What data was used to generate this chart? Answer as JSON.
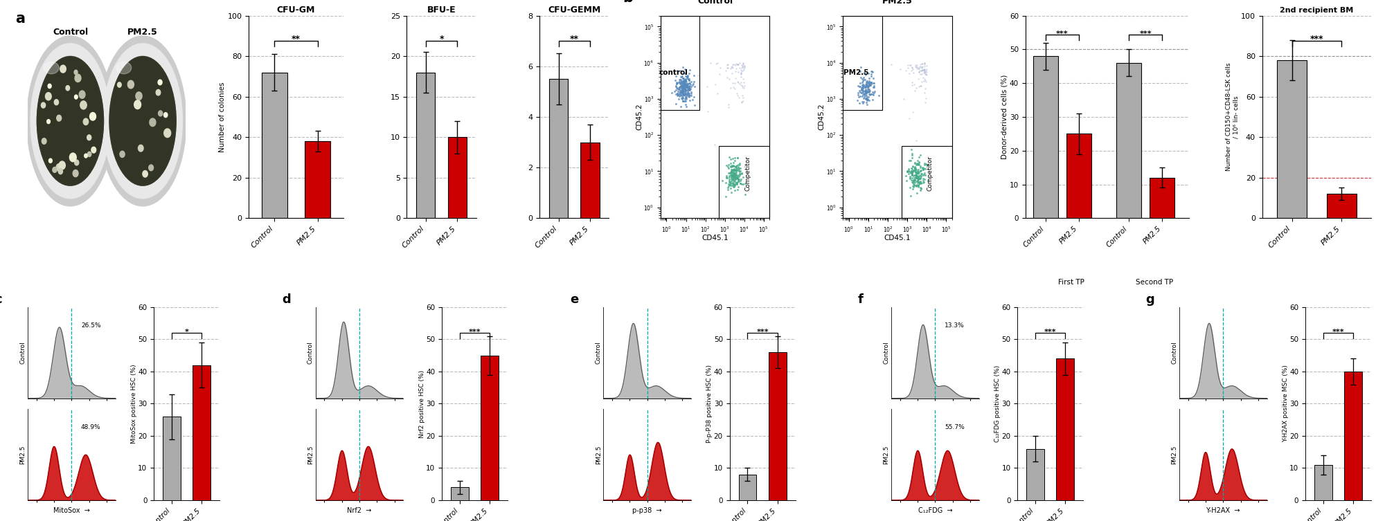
{
  "panel_a_label": "a",
  "panel_b_label": "b",
  "panel_c_label": "c",
  "panel_d_label": "d",
  "panel_e_label": "e",
  "panel_f_label": "f",
  "panel_g_label": "g",
  "cfu_gm": {
    "title": "CFU-GM",
    "categories": [
      "Control",
      "PM2.5"
    ],
    "values": [
      72,
      38
    ],
    "errors": [
      9,
      5
    ],
    "colors": [
      "#aaaaaa",
      "#cc0000"
    ],
    "ylabel": "Number of colonies",
    "ylim": [
      0,
      100
    ],
    "yticks": [
      0,
      20,
      40,
      60,
      80,
      100
    ],
    "significance": "**"
  },
  "bfu_e": {
    "title": "BFU-E",
    "categories": [
      "Control",
      "PM2.5"
    ],
    "values": [
      18,
      10
    ],
    "errors": [
      2.5,
      2
    ],
    "colors": [
      "#aaaaaa",
      "#cc0000"
    ],
    "ylim": [
      0,
      25
    ],
    "yticks": [
      0,
      5,
      10,
      15,
      20,
      25
    ],
    "significance": "*"
  },
  "cfu_gemm": {
    "title": "CFU-GEMM",
    "categories": [
      "Control",
      "PM2.5"
    ],
    "values": [
      5.5,
      3.0
    ],
    "errors": [
      1.0,
      0.7
    ],
    "colors": [
      "#aaaaaa",
      "#cc0000"
    ],
    "ylim": [
      0,
      8
    ],
    "yticks": [
      0,
      2,
      4,
      6,
      8
    ],
    "significance": "**"
  },
  "donor_cells": {
    "categories": [
      "Control",
      "PM2.5",
      "Control",
      "PM2.5"
    ],
    "group_labels": [
      "First TP",
      "Second TP"
    ],
    "values": [
      48,
      25,
      46,
      12
    ],
    "errors": [
      4,
      6,
      4,
      3
    ],
    "colors": [
      "#aaaaaa",
      "#cc0000",
      "#aaaaaa",
      "#cc0000"
    ],
    "ylabel": "Donor-derived cells (%)",
    "ylim": [
      0,
      60
    ],
    "yticks": [
      0,
      10,
      20,
      30,
      40,
      50,
      60
    ],
    "significance": [
      "***",
      "***"
    ]
  },
  "second_recipient": {
    "title": "2nd recipient BM",
    "categories": [
      "Control",
      "PM2.5"
    ],
    "values": [
      78,
      12
    ],
    "errors": [
      10,
      3
    ],
    "colors": [
      "#aaaaaa",
      "#cc0000"
    ],
    "ylabel": "Number of CD150+CD48-LSK cells\n/ 10⁶ lin- cells",
    "ylim": [
      0,
      100
    ],
    "yticks": [
      0,
      20,
      40,
      60,
      80,
      100
    ],
    "significance": "***"
  },
  "mitosox": {
    "control_pct": "26.5%",
    "pm25_pct": "48.9%",
    "bar_values": [
      26,
      42
    ],
    "bar_errors": [
      7,
      7
    ],
    "bar_colors": [
      "#aaaaaa",
      "#cc0000"
    ],
    "ylabel": "MitoSox positive HSC (%)",
    "ylim": [
      0,
      60
    ],
    "yticks": [
      0,
      10,
      20,
      30,
      40,
      50,
      60
    ],
    "significance": "*",
    "xlabel": "MitoSox"
  },
  "nrf2": {
    "control_pct": "",
    "pm25_pct": "",
    "bar_values": [
      4,
      45
    ],
    "bar_errors": [
      2,
      6
    ],
    "bar_colors": [
      "#aaaaaa",
      "#cc0000"
    ],
    "ylabel": "Nrf2 positive HSC (%)",
    "ylim": [
      0,
      60
    ],
    "yticks": [
      0,
      10,
      20,
      30,
      40,
      50,
      60
    ],
    "significance": "***",
    "xlabel": "Nrf2"
  },
  "pp38": {
    "control_pct": "",
    "pm25_pct": "",
    "bar_values": [
      8,
      46
    ],
    "bar_errors": [
      2,
      5
    ],
    "bar_colors": [
      "#aaaaaa",
      "#cc0000"
    ],
    "ylabel": "P-p-P38 positive HSC (%)",
    "ylim": [
      0,
      60
    ],
    "yticks": [
      0,
      10,
      20,
      30,
      40,
      50,
      60
    ],
    "significance": "***",
    "xlabel": "p-p38"
  },
  "c12fdg": {
    "control_pct": "13.3%",
    "pm25_pct": "55.7%",
    "bar_values": [
      16,
      44
    ],
    "bar_errors": [
      4,
      5
    ],
    "bar_colors": [
      "#aaaaaa",
      "#cc0000"
    ],
    "ylabel": "C₁₂FDG positive HSC (%)",
    "ylim": [
      0,
      60
    ],
    "yticks": [
      0,
      10,
      20,
      30,
      40,
      50,
      60
    ],
    "significance": "***",
    "xlabel": "C₁₂FDG"
  },
  "gammah2ax": {
    "control_pct": "",
    "pm25_pct": "",
    "bar_values": [
      11,
      40
    ],
    "bar_errors": [
      3,
      4
    ],
    "bar_colors": [
      "#aaaaaa",
      "#cc0000"
    ],
    "ylabel": "Y-H2AX positive MSC (%)",
    "ylim": [
      0,
      60
    ],
    "yticks": [
      0,
      10,
      20,
      30,
      40,
      50,
      60
    ],
    "significance": "***",
    "xlabel": "Y-H2AX"
  },
  "bg_color": "#ffffff",
  "gray_color": "#aaaaaa",
  "red_color": "#cc0000",
  "teal_color": "#00aaaa",
  "dashed_line_color": "#aaaaaa"
}
